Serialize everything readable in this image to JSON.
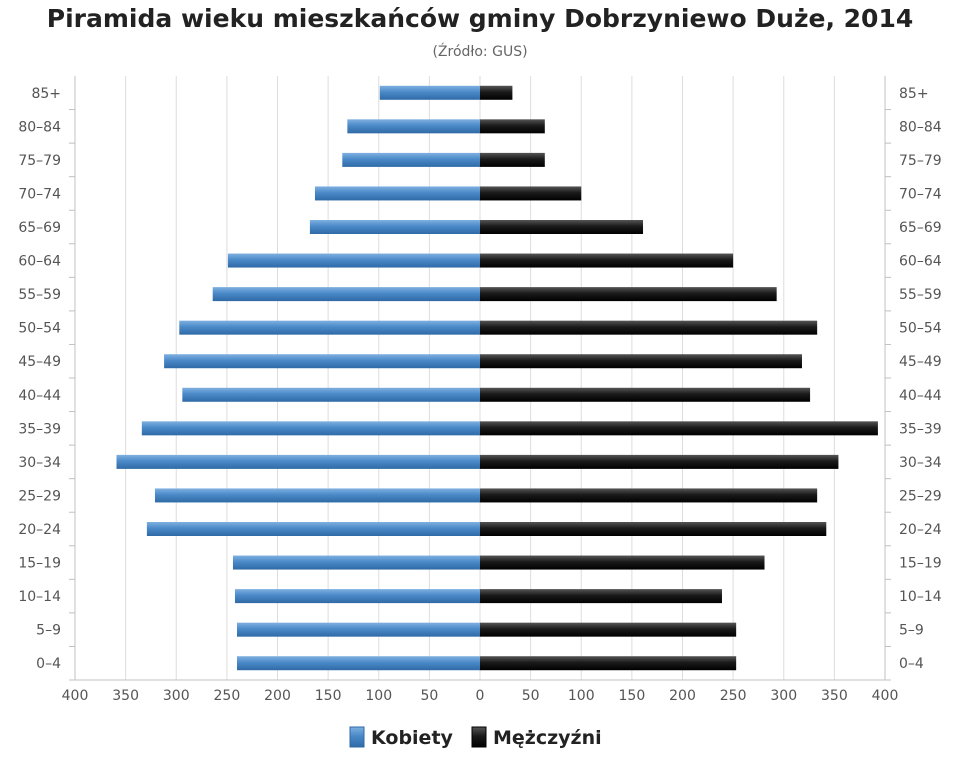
{
  "chart_data": {
    "type": "bar",
    "orientation": "horizontal",
    "layout": "population-pyramid",
    "title": "Piramida wieku mieszkańców gminy Dobrzyniewo Duże, 2014",
    "subtitle": "(Źródło: GUS)",
    "categories": [
      "0–4",
      "5–9",
      "10–14",
      "15–19",
      "20–24",
      "25–29",
      "30–34",
      "35–39",
      "40–44",
      "45–49",
      "50–54",
      "55–59",
      "60–64",
      "65–69",
      "70–74",
      "75–79",
      "80–84",
      "85+"
    ],
    "series": [
      {
        "name": "Kobiety",
        "side": "left",
        "color": "#4a89c8",
        "values": [
          240,
          240,
          242,
          244,
          329,
          321,
          359,
          334,
          294,
          312,
          297,
          264,
          249,
          168,
          163,
          136,
          131,
          99
        ]
      },
      {
        "name": "Mężczyźni",
        "side": "right",
        "color": "#1a1a1a",
        "values": [
          253,
          253,
          239,
          281,
          342,
          333,
          354,
          393,
          326,
          318,
          333,
          293,
          250,
          161,
          100,
          64,
          64,
          32
        ]
      }
    ],
    "xlim": [
      -400,
      400
    ],
    "x_ticks": [
      "400",
      "350",
      "300",
      "250",
      "200",
      "150",
      "100",
      "50",
      "0",
      "50",
      "100",
      "150",
      "200",
      "250",
      "300",
      "350",
      "400"
    ],
    "grid": true,
    "legend_position": "bottom-center"
  }
}
